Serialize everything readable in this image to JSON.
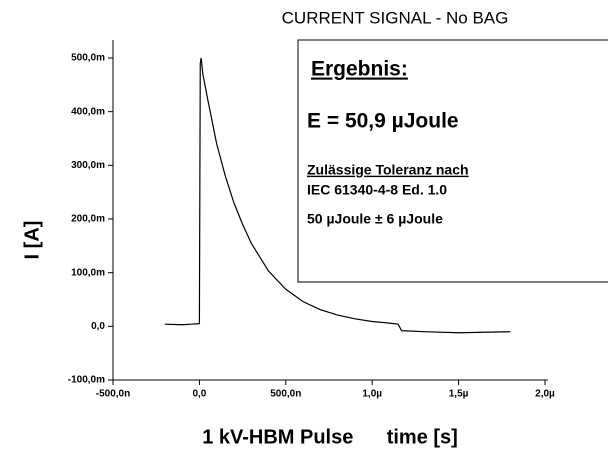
{
  "chart_data": {
    "type": "line",
    "title": "CURRENT SIGNAL - No BAG",
    "x_label": "1 kV-HBM Pulse      time [s]",
    "y_label": "I [A]",
    "annotations": [
      "Ergebnis:",
      "E = 50,9 µJoule",
      "Zulässige Toleranz nach",
      "IEC 61340-4-8 Ed. 1.0",
      "50 µJoule ± 6 µJoule"
    ],
    "x": [
      -2e-07,
      -1e-07,
      -5e-08,
      0,
      5e-09,
      1e-08,
      2e-08,
      5e-08,
      1e-07,
      1.5e-07,
      2e-07,
      2.5e-07,
      3e-07,
      4e-07,
      5e-07,
      6e-07,
      7e-07,
      8e-07,
      9e-07,
      1e-06,
      1.1e-06,
      1.15e-06,
      1.17e-06,
      1.3e-06,
      1.5e-06,
      1.8e-06
    ],
    "series": [
      {
        "color": "#000000",
        "values": [
          0.004,
          0.003,
          0.004,
          0.005,
          0.49,
          0.5,
          0.47,
          0.42,
          0.34,
          0.28,
          0.23,
          0.19,
          0.155,
          0.103,
          0.069,
          0.046,
          0.031,
          0.021,
          0.014,
          0.009,
          0.006,
          0.004,
          -0.008,
          -0.01,
          -0.012,
          -0.01
        ]
      }
    ],
    "xlim": [
      -5e-07,
      2e-06
    ],
    "ylim": [
      -0.1,
      0.5
    ],
    "xticks": [
      {
        "value": -5e-07,
        "label": "-500,0n"
      },
      {
        "value": 0,
        "label": "0,0"
      },
      {
        "value": 5e-07,
        "label": "500,0n"
      },
      {
        "value": 1e-06,
        "label": "1,0µ"
      },
      {
        "value": 1.5e-06,
        "label": "1,5µ"
      },
      {
        "value": 2e-06,
        "label": "2,0µ"
      }
    ],
    "yticks": [
      {
        "value": -0.1,
        "label": "-100,0m"
      },
      {
        "value": 0,
        "label": "0,0"
      },
      {
        "value": 0.1,
        "label": "100,0m"
      },
      {
        "value": 0.2,
        "label": "200,0m"
      },
      {
        "value": 0.3,
        "label": "300,0m"
      },
      {
        "value": 0.4,
        "label": "400,0m"
      },
      {
        "value": 0.5,
        "label": "500,0m"
      }
    ],
    "grid": false
  }
}
